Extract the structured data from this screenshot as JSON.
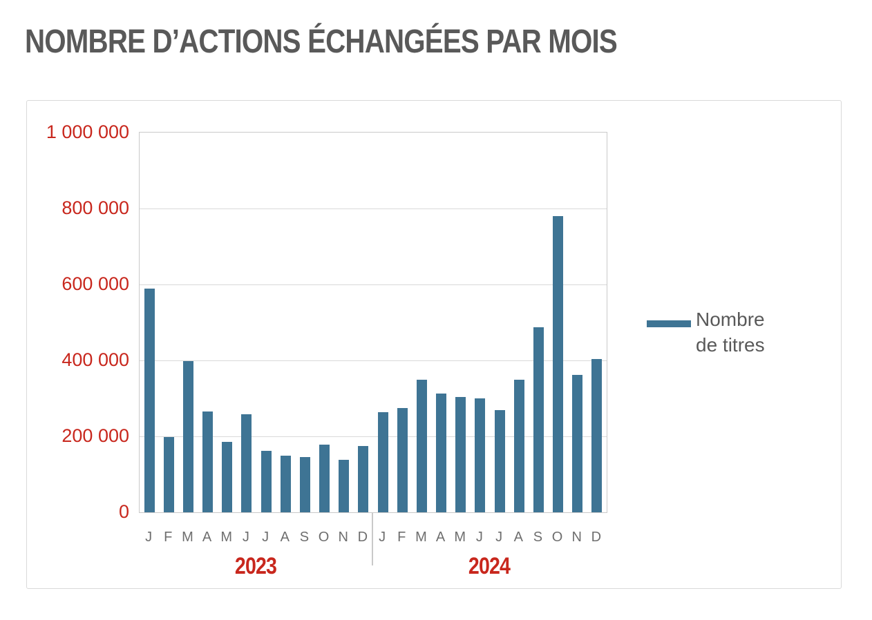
{
  "title": "NOMBRE D’ACTIONS ÉCHANGÉES PAR MOIS",
  "colors": {
    "bar": "#3E7494",
    "red_label": "#C8271D",
    "title_text": "#595959",
    "month_label": "#6E6E6E",
    "legend_text": "#595959",
    "gridline": "#D9D9D9",
    "plot_border": "#C9C9C9",
    "card_border": "#D9D9D9"
  },
  "legend": {
    "line1": "Nombre",
    "line2": "de titres"
  },
  "y_axis": {
    "tick_labels": [
      "1 000 000",
      "800 000",
      "600 000",
      "400 000",
      "200 000",
      "0"
    ]
  },
  "x_axis": {
    "months": [
      "J",
      "F",
      "M",
      "A",
      "M",
      "J",
      "J",
      "A",
      "S",
      "O",
      "N",
      "D",
      "J",
      "F",
      "M",
      "A",
      "M",
      "J",
      "J",
      "A",
      "S",
      "O",
      "N",
      "D"
    ],
    "year_left": "2023",
    "year_right": "2024"
  },
  "chart_data": {
    "type": "bar",
    "title": "NOMBRE D’ACTIONS ÉCHANGÉES PAR MOIS",
    "categories": [
      "2023-J",
      "2023-F",
      "2023-M",
      "2023-A",
      "2023-M",
      "2023-J",
      "2023-J",
      "2023-A",
      "2023-S",
      "2023-O",
      "2023-N",
      "2023-D",
      "2024-J",
      "2024-F",
      "2024-M",
      "2024-A",
      "2024-M",
      "2024-J",
      "2024-J",
      "2024-A",
      "2024-S",
      "2024-O",
      "2024-N",
      "2024-D"
    ],
    "series": [
      {
        "name": "Nombre de titres",
        "values": [
          590000,
          198000,
          399000,
          266000,
          185000,
          258000,
          161000,
          149000,
          146000,
          178000,
          139000,
          174000,
          263000,
          274000,
          350000,
          313000,
          304000,
          300000,
          269000,
          350000,
          487000,
          780000,
          361000,
          404000
        ]
      }
    ],
    "year_groups": [
      {
        "label": "2023",
        "months": 12
      },
      {
        "label": "2024",
        "months": 12
      }
    ],
    "ylim": [
      0,
      1000000
    ],
    "y_tick_step": 200000,
    "grid": true,
    "legend_position": "right",
    "xlabel": "",
    "ylabel": ""
  }
}
